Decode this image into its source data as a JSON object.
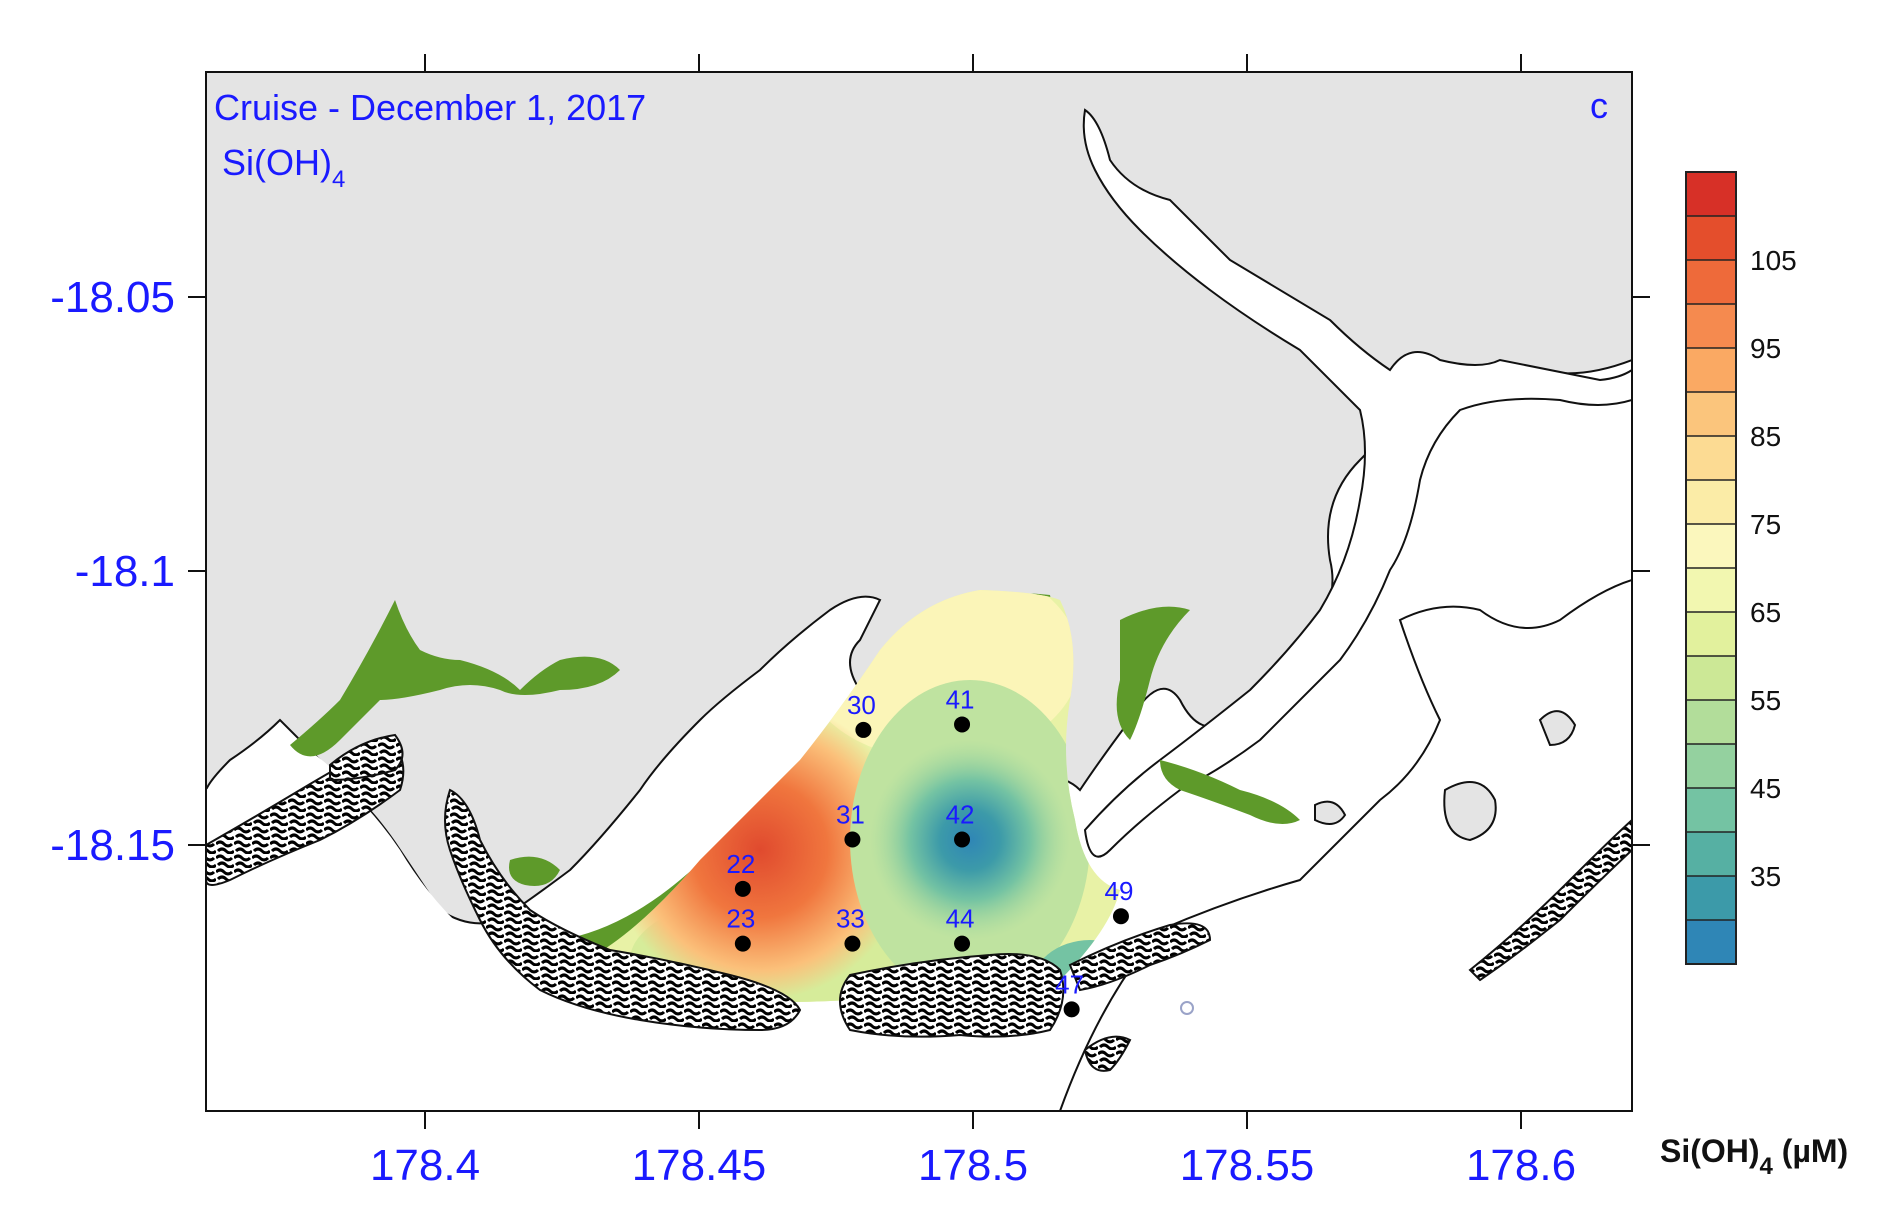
{
  "map": {
    "title": "Cruise - December 1, 2017",
    "variable_main": "Si(OH)",
    "variable_sub": "4",
    "panel_letter": "c",
    "colors": {
      "land": "#e4e4e4",
      "water": "#ffffff",
      "mangrove": "#5e9a2a",
      "reef_pattern": "hatched black/white",
      "station": "#000000",
      "label": "#1a1aff"
    }
  },
  "axes": {
    "x_ticks": [
      "178.4",
      "178.45",
      "178.5",
      "178.55",
      "178.6"
    ],
    "y_ticks": [
      "-18.05",
      "-18.1",
      "-18.15"
    ]
  },
  "stations": [
    {
      "id": "22",
      "lon": 178.458,
      "lat": -18.158
    },
    {
      "id": "23",
      "lon": 178.458,
      "lat": -18.168
    },
    {
      "id": "30",
      "lon": 178.48,
      "lat": -18.129
    },
    {
      "id": "31",
      "lon": 178.478,
      "lat": -18.149
    },
    {
      "id": "33",
      "lon": 178.478,
      "lat": -18.168
    },
    {
      "id": "41",
      "lon": 178.498,
      "lat": -18.128
    },
    {
      "id": "42",
      "lon": 178.498,
      "lat": -18.149
    },
    {
      "id": "44",
      "lon": 178.498,
      "lat": -18.168
    },
    {
      "id": "47",
      "lon": 178.518,
      "lat": -18.18
    },
    {
      "id": "49",
      "lon": 178.527,
      "lat": -18.163
    }
  ],
  "colorbar": {
    "label_main": "Si(OH)",
    "label_sub": "4",
    "label_unit": " (µM)",
    "tick_labels": [
      "105",
      "95",
      "85",
      "75",
      "65",
      "55",
      "45",
      "35"
    ],
    "bands": [
      "#d73027",
      "#e44e2c",
      "#ee6a3a",
      "#f58a4f",
      "#faa963",
      "#fbc57c",
      "#fcdb93",
      "#fbeca7",
      "#fbf7bd",
      "#f2f7b0",
      "#e2f19d",
      "#cce896",
      "#b2dd9a",
      "#94d19f",
      "#74c3a3",
      "#56b0a3",
      "#3c9aa9",
      "#2f86b6"
    ]
  }
}
